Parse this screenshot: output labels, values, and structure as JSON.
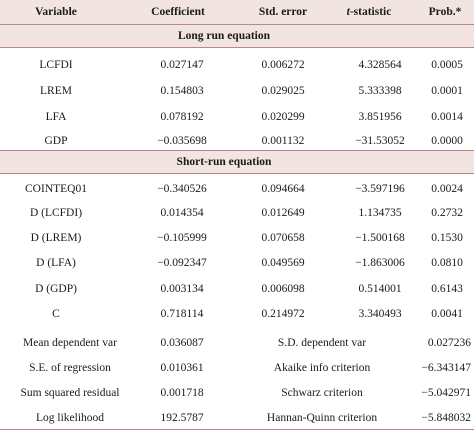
{
  "header": {
    "variable": "Variable",
    "coefficient": "Coefficient",
    "std_error": "Std. error",
    "t_stat_italic": "t",
    "t_stat_rest": "-statistic",
    "prob": "Prob.*"
  },
  "long_run": {
    "title": "Long run equation",
    "rows": [
      {
        "var": "LCFDI",
        "coef": "0.027147",
        "se": "0.006272",
        "t": "4.328564",
        "p": "0.0005"
      },
      {
        "var": "LREM",
        "coef": "0.154803",
        "se": "0.029025",
        "t": "5.333398",
        "p": "0.0001"
      },
      {
        "var": "LFA",
        "coef": "0.078192",
        "se": "0.020299",
        "t": "3.851956",
        "p": "0.0014"
      },
      {
        "var": "GDP",
        "coef": "−0.035698",
        "se": "0.001132",
        "t": "−31.53052",
        "p": "0.0000"
      }
    ]
  },
  "short_run": {
    "title": "Short-run equation",
    "rows": [
      {
        "var": "COINTEQ01",
        "coef": "−0.340526",
        "se": "0.094664",
        "t": "−3.597196",
        "p": "0.0024"
      },
      {
        "var": "D (LCFDI)",
        "coef": "0.014354",
        "se": "0.012649",
        "t": "1.134735",
        "p": "0.2732"
      },
      {
        "var": "D (LREM)",
        "coef": "−0.105999",
        "se": "0.070658",
        "t": "−1.500168",
        "p": "0.1530"
      },
      {
        "var": "D (LFA)",
        "coef": "−0.092347",
        "se": "0.049569",
        "t": "−1.863006",
        "p": "0.0810"
      },
      {
        "var": "D (GDP)",
        "coef": "0.003134",
        "se": "0.006098",
        "t": "0.514001",
        "p": "0.6143"
      },
      {
        "var": "C",
        "coef": "0.718114",
        "se": "0.214972",
        "t": "3.340493",
        "p": "0.0041"
      }
    ]
  },
  "stats": [
    {
      "label1": "Mean dependent var",
      "val1": "0.036087",
      "label2": "S.D. dependent var",
      "val2": "0.027236"
    },
    {
      "label1": "S.E. of regression",
      "val1": "0.010361",
      "label2": "Akaike info criterion",
      "val2": "−6.343147"
    },
    {
      "label1": "Sum squared residual",
      "val1": "0.001718",
      "label2": "Schwarz criterion",
      "val2": "−5.042971"
    },
    {
      "label1": "Log likelihood",
      "val1": "192.5787",
      "label2": "Hannan-Quinn criterion",
      "val2": "−5.848032"
    }
  ],
  "colors": {
    "header_fill": "#f2e4e1",
    "rule": "#b88787",
    "text": "#1a1a1a"
  }
}
